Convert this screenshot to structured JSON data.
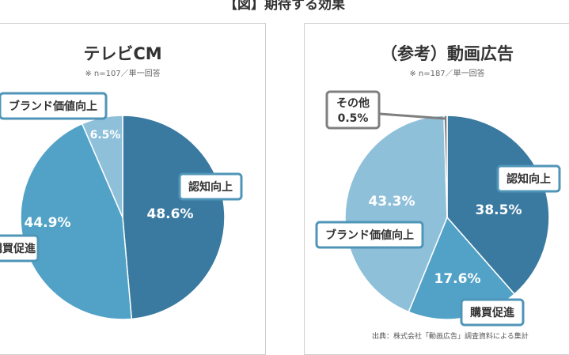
{
  "figure": {
    "title": "【図】期待する効果",
    "footnote": "出典：株式会社「動画広告」調査資料による集計"
  },
  "colors": {
    "dark": "#3a7aa0",
    "mid": "#52a2c7",
    "light": "#8fc0da",
    "lightest": "#a7cfe2",
    "other": "#7f7f7f",
    "label_border": "#4f95b8"
  },
  "chart_data": [
    {
      "type": "pie",
      "title": "テレビCM",
      "subtitle": "※ n=107／単一回答",
      "start_angle_deg": 0,
      "direction": "clockwise",
      "slices": [
        {
          "label": "認知向上",
          "value": 48.6,
          "value_label": "48.6%",
          "color": "#3a7aa0"
        },
        {
          "label": "購買促進",
          "value": 44.9,
          "value_label": "44.9%",
          "color": "#52a2c7"
        },
        {
          "label": "ブランド価値向上",
          "value": 6.5,
          "value_label": "6.5%",
          "color": "#8fc0da"
        }
      ]
    },
    {
      "type": "pie",
      "title": "（参考）動画広告",
      "subtitle": "※ n=187／単一回答",
      "start_angle_deg": 0,
      "direction": "clockwise",
      "slices": [
        {
          "label": "認知向上",
          "value": 38.5,
          "value_label": "38.5%",
          "color": "#3a7aa0"
        },
        {
          "label": "購買促進",
          "value": 17.6,
          "value_label": "17.6%",
          "color": "#52a2c7"
        },
        {
          "label": "ブランド価値向上",
          "value": 43.3,
          "value_label": "43.3%",
          "color": "#8fc0da"
        },
        {
          "label": "その他",
          "value": 0.5,
          "value_label": "0.5%",
          "color": "#7f7f7f"
        }
      ]
    }
  ]
}
